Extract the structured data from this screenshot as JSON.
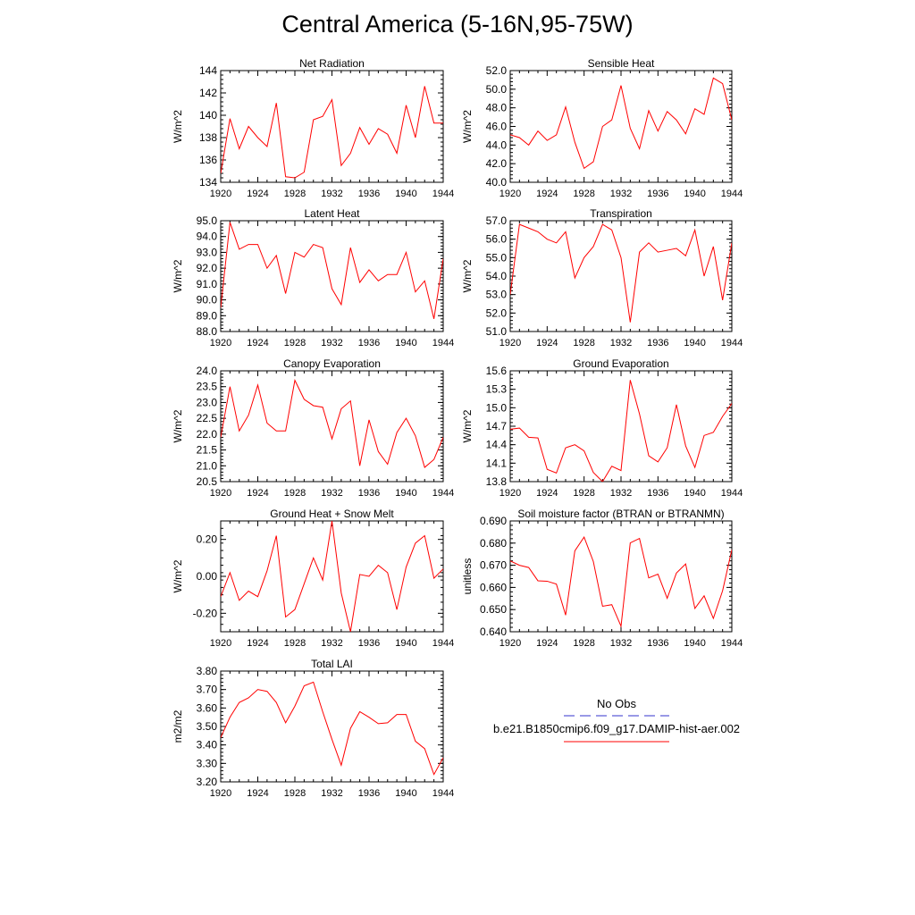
{
  "title": "Central America (5-16N,95-75W)",
  "colors": {
    "model": "#ff0000",
    "obs": "#3333cc",
    "axis": "#000000"
  },
  "legend": {
    "obs_label": "No Obs",
    "model_label": "b.e21.B1850cmip6.f09_g17.DAMIP-hist-aer.002",
    "placement": "bottom-right"
  },
  "chart_data": [
    {
      "type": "line",
      "title": "Net Radiation",
      "ylabel": "W/m^2",
      "xlim": [
        1920,
        1944
      ],
      "ylim": [
        134,
        144
      ],
      "xticks": [
        "1920",
        "1924",
        "1928",
        "1932",
        "1936",
        "1940",
        "1944"
      ],
      "yticks": [
        "134",
        "136",
        "138",
        "140",
        "142",
        "144"
      ],
      "x": [
        1920,
        1921,
        1922,
        1923,
        1924,
        1925,
        1926,
        1927,
        1928,
        1929,
        1930,
        1931,
        1932,
        1933,
        1934,
        1935,
        1936,
        1937,
        1938,
        1939,
        1940,
        1941,
        1942,
        1943,
        1944
      ],
      "series": [
        {
          "values": [
            134.8,
            139.7,
            137.0,
            139.0,
            138.0,
            137.2,
            141.1,
            134.5,
            134.4,
            134.9,
            139.6,
            139.9,
            141.4,
            135.5,
            136.6,
            138.9,
            137.4,
            138.8,
            138.3,
            136.6,
            140.9,
            138.0,
            142.6,
            139.3,
            139.3
          ]
        }
      ]
    },
    {
      "type": "line",
      "title": "Sensible Heat",
      "ylabel": "W/m^2",
      "xlim": [
        1920,
        1944
      ],
      "ylim": [
        40,
        52
      ],
      "xticks": [
        "1920",
        "1924",
        "1928",
        "1932",
        "1936",
        "1940",
        "1944"
      ],
      "yticks": [
        "40.0",
        "42.0",
        "44.0",
        "46.0",
        "48.0",
        "50.0",
        "52.0"
      ],
      "x": [
        1920,
        1921,
        1922,
        1923,
        1924,
        1925,
        1926,
        1927,
        1928,
        1929,
        1930,
        1931,
        1932,
        1933,
        1934,
        1935,
        1936,
        1937,
        1938,
        1939,
        1940,
        1941,
        1942,
        1943,
        1944
      ],
      "series": [
        {
          "values": [
            45.1,
            44.8,
            44.0,
            45.5,
            44.5,
            45.1,
            48.1,
            44.3,
            41.5,
            42.2,
            46.0,
            46.7,
            50.4,
            45.8,
            43.6,
            47.7,
            45.5,
            47.6,
            46.7,
            45.2,
            47.9,
            47.3,
            51.2,
            50.6,
            46.7
          ]
        }
      ]
    },
    {
      "type": "line",
      "title": "Latent Heat",
      "ylabel": "W/m^2",
      "xlim": [
        1920,
        1944
      ],
      "ylim": [
        88,
        95
      ],
      "xticks": [
        "1920",
        "1924",
        "1928",
        "1932",
        "1936",
        "1940",
        "1944"
      ],
      "yticks": [
        "88.0",
        "89.0",
        "90.0",
        "91.0",
        "92.0",
        "93.0",
        "94.0",
        "95.0"
      ],
      "x": [
        1920,
        1921,
        1922,
        1923,
        1924,
        1925,
        1926,
        1927,
        1928,
        1929,
        1930,
        1931,
        1932,
        1933,
        1934,
        1935,
        1936,
        1937,
        1938,
        1939,
        1940,
        1941,
        1942,
        1943,
        1944
      ],
      "series": [
        {
          "values": [
            89.5,
            94.9,
            93.2,
            93.5,
            93.5,
            92.0,
            92.8,
            90.4,
            93.0,
            92.7,
            93.5,
            93.3,
            90.7,
            89.7,
            93.3,
            91.1,
            91.9,
            91.2,
            91.6,
            91.6,
            93.0,
            90.5,
            91.2,
            88.8,
            92.6
          ]
        }
      ]
    },
    {
      "type": "line",
      "title": "Transpiration",
      "ylabel": "W/m^2",
      "xlim": [
        1920,
        1944
      ],
      "ylim": [
        51,
        57
      ],
      "xticks": [
        "1920",
        "1924",
        "1928",
        "1932",
        "1936",
        "1940",
        "1944"
      ],
      "yticks": [
        "51.0",
        "52.0",
        "53.0",
        "54.0",
        "55.0",
        "56.0",
        "57.0"
      ],
      "x": [
        1920,
        1921,
        1922,
        1923,
        1924,
        1925,
        1926,
        1927,
        1928,
        1929,
        1930,
        1931,
        1932,
        1933,
        1934,
        1935,
        1936,
        1937,
        1938,
        1939,
        1940,
        1941,
        1942,
        1943,
        1944
      ],
      "series": [
        {
          "values": [
            53.0,
            56.8,
            56.6,
            56.4,
            56.0,
            55.8,
            56.4,
            53.9,
            55.0,
            55.6,
            56.8,
            56.5,
            55.0,
            51.5,
            55.3,
            55.8,
            55.3,
            55.4,
            55.5,
            55.1,
            56.5,
            54.0,
            55.6,
            52.7,
            55.8
          ]
        }
      ]
    },
    {
      "type": "line",
      "title": "Canopy Evaporation",
      "ylabel": "W/m^2",
      "xlim": [
        1920,
        1944
      ],
      "ylim": [
        20.5,
        24
      ],
      "xticks": [
        "1920",
        "1924",
        "1928",
        "1932",
        "1936",
        "1940",
        "1944"
      ],
      "yticks": [
        "20.5",
        "21.0",
        "21.5",
        "22.0",
        "22.5",
        "23.0",
        "23.5",
        "24.0"
      ],
      "x": [
        1920,
        1921,
        1922,
        1923,
        1924,
        1925,
        1926,
        1927,
        1928,
        1929,
        1930,
        1931,
        1932,
        1933,
        1934,
        1935,
        1936,
        1937,
        1938,
        1939,
        1940,
        1941,
        1942,
        1943,
        1944
      ],
      "series": [
        {
          "values": [
            21.9,
            23.5,
            22.1,
            22.6,
            23.55,
            22.35,
            22.1,
            22.1,
            23.7,
            23.1,
            22.9,
            22.85,
            21.85,
            22.8,
            23.05,
            21.0,
            22.45,
            21.45,
            21.05,
            22.05,
            22.5,
            21.95,
            20.95,
            21.2,
            21.9
          ]
        }
      ]
    },
    {
      "type": "line",
      "title": "Ground Evaporation",
      "ylabel": "W/m^2",
      "xlim": [
        1920,
        1944
      ],
      "ylim": [
        13.8,
        15.6
      ],
      "xticks": [
        "1920",
        "1924",
        "1928",
        "1932",
        "1936",
        "1940",
        "1944"
      ],
      "yticks": [
        "13.8",
        "14.1",
        "14.4",
        "14.7",
        "15.0",
        "15.3",
        "15.6"
      ],
      "x": [
        1920,
        1921,
        1922,
        1923,
        1924,
        1925,
        1926,
        1927,
        1928,
        1929,
        1930,
        1931,
        1932,
        1933,
        1934,
        1935,
        1936,
        1937,
        1938,
        1939,
        1940,
        1941,
        1942,
        1943,
        1944
      ],
      "series": [
        {
          "values": [
            14.65,
            14.67,
            14.52,
            14.51,
            14.0,
            13.94,
            14.35,
            14.4,
            14.3,
            13.95,
            13.8,
            14.05,
            13.98,
            15.45,
            14.9,
            14.22,
            14.12,
            14.35,
            15.05,
            14.38,
            14.03,
            14.55,
            14.6,
            14.86,
            15.07
          ]
        }
      ]
    },
    {
      "type": "line",
      "title": "Ground Heat + Snow Melt",
      "ylabel": "W/m^2",
      "xlim": [
        1920,
        1944
      ],
      "ylim": [
        -0.3,
        0.3
      ],
      "xticks": [
        "1920",
        "1924",
        "1928",
        "1932",
        "1936",
        "1940",
        "1944"
      ],
      "yticks": [
        "-0.20",
        "0.00",
        "0.20"
      ],
      "ytick_values": [
        -0.2,
        0,
        0.2
      ],
      "x": [
        1920,
        1921,
        1922,
        1923,
        1924,
        1925,
        1926,
        1927,
        1928,
        1929,
        1930,
        1931,
        1932,
        1933,
        1934,
        1935,
        1936,
        1937,
        1938,
        1939,
        1940,
        1941,
        1942,
        1943,
        1944
      ],
      "series": [
        {
          "values": [
            -0.11,
            0.02,
            -0.13,
            -0.08,
            -0.11,
            0.03,
            0.22,
            -0.22,
            -0.18,
            -0.04,
            0.1,
            -0.02,
            0.3,
            -0.09,
            -0.3,
            0.01,
            0.0,
            0.06,
            0.02,
            -0.18,
            0.05,
            0.18,
            0.22,
            -0.01,
            0.04
          ]
        }
      ]
    },
    {
      "type": "line",
      "title": "Soil moisture factor (BTRAN or BTRANMN)",
      "ylabel": "unitless",
      "xlim": [
        1920,
        1944
      ],
      "ylim": [
        0.64,
        0.69
      ],
      "xticks": [
        "1920",
        "1924",
        "1928",
        "1932",
        "1936",
        "1940",
        "1944"
      ],
      "yticks": [
        "0.640",
        "0.650",
        "0.660",
        "0.670",
        "0.680",
        "0.690"
      ],
      "x": [
        1920,
        1921,
        1922,
        1923,
        1924,
        1925,
        1926,
        1927,
        1928,
        1929,
        1930,
        1931,
        1932,
        1933,
        1934,
        1935,
        1936,
        1937,
        1938,
        1939,
        1940,
        1941,
        1942,
        1943,
        1944
      ],
      "series": [
        {
          "values": [
            0.672,
            0.67,
            0.669,
            0.663,
            0.6628,
            0.6615,
            0.6475,
            0.6765,
            0.6827,
            0.6717,
            0.6515,
            0.6522,
            0.6425,
            0.6801,
            0.6821,
            0.6643,
            0.666,
            0.6551,
            0.6665,
            0.6706,
            0.6505,
            0.6562,
            0.646,
            0.6585,
            0.677
          ]
        }
      ]
    },
    {
      "type": "line",
      "title": "Total LAI",
      "ylabel": "m2/m2",
      "xlim": [
        1920,
        1944
      ],
      "ylim": [
        3.2,
        3.8
      ],
      "xticks": [
        "1920",
        "1924",
        "1928",
        "1932",
        "1936",
        "1940",
        "1944"
      ],
      "yticks": [
        "3.20",
        "3.30",
        "3.40",
        "3.50",
        "3.60",
        "3.70",
        "3.80"
      ],
      "x": [
        1920,
        1921,
        1922,
        1923,
        1924,
        1925,
        1926,
        1927,
        1928,
        1929,
        1930,
        1931,
        1932,
        1933,
        1934,
        1935,
        1936,
        1937,
        1938,
        1939,
        1940,
        1941,
        1942,
        1943,
        1944
      ],
      "series": [
        {
          "values": [
            3.44,
            3.55,
            3.63,
            3.655,
            3.7,
            3.69,
            3.63,
            3.52,
            3.61,
            3.72,
            3.74,
            3.58,
            3.43,
            3.29,
            3.49,
            3.58,
            3.55,
            3.515,
            3.52,
            3.565,
            3.565,
            3.42,
            3.38,
            3.24,
            3.33
          ]
        }
      ]
    }
  ]
}
